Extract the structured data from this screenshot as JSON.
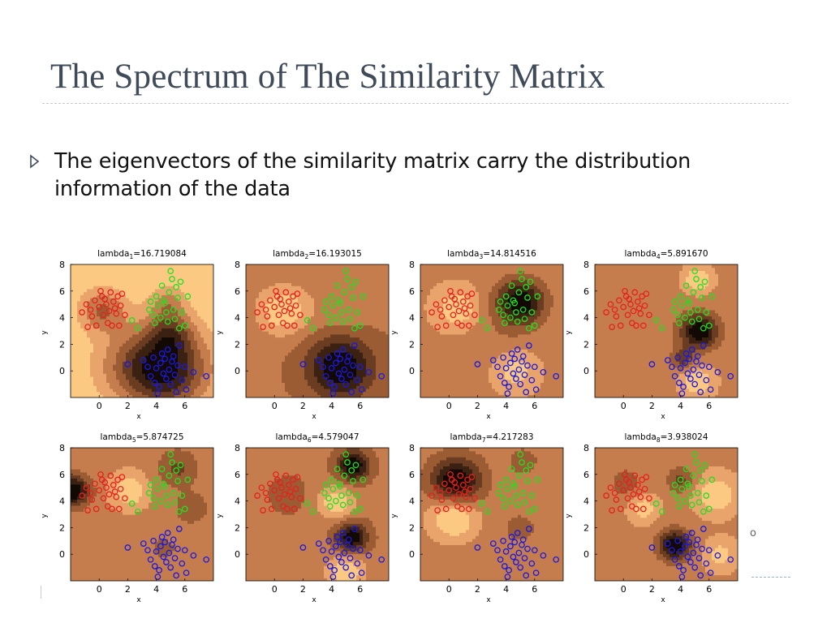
{
  "slide": {
    "title": "The Spectrum of The Similarity Matrix",
    "bullet": "The eigenvectors of the similarity matrix carry the distribution information of the data",
    "bullet_icon": "triangle-bullet-icon",
    "title_color": "#3f4b58",
    "edge_glyph": "o"
  },
  "chart_data": {
    "type": "contour-scatter-grid",
    "rows": 2,
    "cols": 4,
    "xlabel": "x",
    "ylabel": "y",
    "xlim": [
      -2,
      8
    ],
    "ylim": [
      -2,
      8
    ],
    "xticks": [
      0,
      2,
      4,
      6
    ],
    "yticks": [
      0,
      2,
      4,
      6,
      8
    ],
    "panel_titles": [
      {
        "base": "lambda",
        "sub": "1",
        "value": "=16.719084"
      },
      {
        "base": "lambda",
        "sub": "2",
        "value": "=16.193015"
      },
      {
        "base": "lambda",
        "sub": "3",
        "value": "=14.814516"
      },
      {
        "base": "lambda",
        "sub": "4",
        "value": "=5.891670"
      },
      {
        "base": "lambda",
        "sub": "5",
        "value": "=5.874725"
      },
      {
        "base": "lambda",
        "sub": "6",
        "value": "=4.579047"
      },
      {
        "base": "lambda",
        "sub": "7",
        "value": "=4.217283"
      },
      {
        "base": "lambda",
        "sub": "8",
        "value": "=3.938024"
      }
    ],
    "series_colors": [
      "#e8201c",
      "#1fe01f",
      "#1a1adf"
    ],
    "contour_colors": [
      "#fcc983",
      "#e9a46c",
      "#c67d4e",
      "#9b5c34",
      "#6a3c21",
      "#3a2112",
      "#120804"
    ],
    "clusters": [
      {
        "color": "#e8201c",
        "points": [
          [
            -1.2,
            4.4
          ],
          [
            -0.9,
            5.0
          ],
          [
            -0.6,
            4.6
          ],
          [
            -0.3,
            5.3
          ],
          [
            -0.5,
            4.1
          ],
          [
            -0.2,
            3.4
          ],
          [
            0.0,
            4.8
          ],
          [
            0.2,
            5.6
          ],
          [
            0.3,
            4.2
          ],
          [
            0.5,
            5.0
          ],
          [
            0.7,
            4.5
          ],
          [
            0.8,
            5.9
          ],
          [
            1.0,
            5.2
          ],
          [
            1.1,
            4.7
          ],
          [
            1.3,
            5.6
          ],
          [
            1.4,
            3.4
          ],
          [
            1.5,
            4.9
          ],
          [
            1.6,
            5.8
          ],
          [
            1.8,
            4.2
          ],
          [
            0.6,
            3.6
          ],
          [
            0.9,
            3.4
          ],
          [
            0.1,
            6.0
          ],
          [
            -0.8,
            3.3
          ],
          [
            1.2,
            4.3
          ],
          [
            0.4,
            5.4
          ]
        ]
      },
      {
        "color": "#1fe01f",
        "points": [
          [
            2.3,
            3.8
          ],
          [
            2.7,
            3.2
          ],
          [
            3.5,
            4.6
          ],
          [
            3.6,
            5.2
          ],
          [
            3.8,
            4.2
          ],
          [
            4.0,
            5.6
          ],
          [
            4.1,
            4.9
          ],
          [
            4.3,
            4.0
          ],
          [
            4.4,
            6.4
          ],
          [
            4.6,
            5.1
          ],
          [
            4.7,
            4.4
          ],
          [
            4.8,
            3.7
          ],
          [
            4.9,
            5.9
          ],
          [
            5.0,
            7.5
          ],
          [
            5.1,
            6.9
          ],
          [
            5.2,
            4.6
          ],
          [
            5.3,
            3.9
          ],
          [
            5.4,
            6.3
          ],
          [
            5.5,
            5.5
          ],
          [
            5.6,
            3.2
          ],
          [
            5.7,
            6.7
          ],
          [
            5.8,
            4.4
          ],
          [
            6.0,
            3.4
          ],
          [
            6.2,
            5.6
          ],
          [
            4.5,
            5.3
          ],
          [
            3.9,
            3.6
          ]
        ]
      },
      {
        "color": "#1a1adf",
        "points": [
          [
            2.0,
            0.5
          ],
          [
            3.1,
            0.8
          ],
          [
            3.4,
            0.3
          ],
          [
            3.6,
            -0.4
          ],
          [
            3.8,
            1.0
          ],
          [
            3.9,
            -0.9
          ],
          [
            4.0,
            0.2
          ],
          [
            4.2,
            -1.2
          ],
          [
            4.3,
            0.6
          ],
          [
            4.4,
            1.3
          ],
          [
            4.5,
            -0.2
          ],
          [
            4.6,
            0.9
          ],
          [
            4.7,
            -0.6
          ],
          [
            4.8,
            1.6
          ],
          [
            4.9,
            0.1
          ],
          [
            5.0,
            -1.0
          ],
          [
            5.1,
            0.7
          ],
          [
            5.2,
            1.1
          ],
          [
            5.3,
            -0.3
          ],
          [
            5.5,
            0.4
          ],
          [
            5.6,
            1.9
          ],
          [
            5.8,
            -0.7
          ],
          [
            6.0,
            0.3
          ],
          [
            6.1,
            -1.4
          ],
          [
            6.6,
            -0.1
          ],
          [
            7.5,
            -0.4
          ],
          [
            4.1,
            -1.7
          ],
          [
            5.4,
            -1.6
          ]
        ]
      }
    ],
    "panel_fields": [
      {
        "base": 0.05,
        "centers": [
          [
            4.5,
            0.2,
            2.2,
            1.2
          ],
          [
            0.2,
            4.6,
            1.2,
            0.55
          ],
          [
            4.8,
            5.2,
            0.9,
            0.35
          ]
        ],
        "ridges": [
          [
            5.0,
            3.0,
            1.1,
            0.45
          ],
          [
            1.5,
            0.5,
            1.8,
            0.2
          ]
        ]
      },
      {
        "base": 0.55,
        "centers": [
          [
            4.6,
            0.3,
            1.6,
            0.8
          ],
          [
            0.6,
            4.6,
            1.3,
            -0.55
          ],
          [
            4.8,
            5.2,
            1.4,
            -0.15
          ]
        ],
        "ridges": []
      },
      {
        "base": 0.45,
        "centers": [
          [
            5.0,
            5.2,
            1.2,
            0.85
          ],
          [
            0.6,
            4.7,
            1.0,
            -0.4
          ],
          [
            4.6,
            0.1,
            1.0,
            -0.35
          ]
        ],
        "ridges": [
          [
            3.5,
            2.2,
            1.8,
            0.1
          ]
        ]
      },
      {
        "base": 0.5,
        "centers": [
          [
            5.3,
            3.0,
            0.9,
            0.8
          ],
          [
            5.2,
            6.9,
            0.7,
            -0.4
          ],
          [
            5.2,
            -0.8,
            0.8,
            -0.4
          ],
          [
            1.0,
            4.6,
            1.5,
            0.1
          ],
          [
            4.2,
            0.9,
            0.6,
            0.4
          ]
        ],
        "ridges": []
      },
      {
        "base": 0.48,
        "centers": [
          [
            -1.8,
            4.8,
            0.8,
            0.9
          ],
          [
            2.1,
            4.8,
            0.9,
            -0.45
          ],
          [
            5.5,
            6.5,
            1.0,
            0.35
          ],
          [
            6.5,
            3.5,
            0.8,
            0.3
          ],
          [
            4.5,
            0.5,
            1.2,
            0.15
          ]
        ],
        "ridges": []
      },
      {
        "base": 0.5,
        "centers": [
          [
            5.5,
            6.7,
            0.8,
            0.8
          ],
          [
            5.4,
            1.3,
            0.8,
            0.75
          ],
          [
            4.3,
            3.9,
            0.9,
            -0.45
          ],
          [
            5.0,
            -1.3,
            0.9,
            -0.5
          ],
          [
            1.0,
            4.5,
            1.2,
            0.12
          ]
        ],
        "ridges": []
      },
      {
        "base": 0.45,
        "centers": [
          [
            0.5,
            5.5,
            1.2,
            0.9
          ],
          [
            0.3,
            2.8,
            1.2,
            -0.55
          ],
          [
            5.2,
            7.0,
            0.7,
            0.2
          ],
          [
            5.0,
            2.0,
            0.7,
            0.2
          ]
        ],
        "ridges": []
      },
      {
        "base": 0.5,
        "centers": [
          [
            3.6,
            0.7,
            0.8,
            0.85
          ],
          [
            0.2,
            5.4,
            1.0,
            0.2
          ],
          [
            1.4,
            3.5,
            0.7,
            -0.35
          ],
          [
            6.5,
            4.5,
            1.0,
            -0.4
          ],
          [
            4.0,
            5.6,
            0.7,
            0.35
          ],
          [
            6.8,
            0.0,
            0.8,
            -0.3
          ]
        ],
        "ridges": []
      }
    ]
  }
}
